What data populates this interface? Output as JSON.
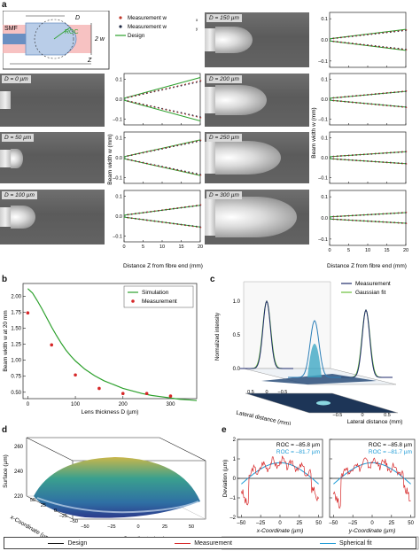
{
  "panel_labels": {
    "a": "a",
    "b": "b",
    "c": "c",
    "d": "d",
    "e": "e"
  },
  "schematic": {
    "smf": "SMF",
    "roc": "ROC",
    "d_label": "D",
    "w_label": "2 w",
    "z_label": "Z"
  },
  "photos": [
    {
      "tag": "D = 0 µm"
    },
    {
      "tag": "D = 50 µm"
    },
    {
      "tag": "D = 100 µm"
    },
    {
      "tag": "D = 150 µm"
    },
    {
      "tag": "D = 200 µm"
    },
    {
      "tag": "D = 250 µm"
    },
    {
      "tag": "D = 300 µm"
    }
  ],
  "panel_a": {
    "legend": {
      "mx": "Measurement w",
      "mx_sub": "x",
      "my": "Measurement w",
      "my_sub": "y",
      "design": "Design"
    },
    "ylabel_left": "Beam width w (mm)",
    "ylabel_right": "Beam width w (mm)",
    "xlabel_left": "Distance Z from fibre end (mm)",
    "xlabel_right": "Distance Z from fibre end (mm)",
    "xticks": [
      "0",
      "5",
      "10",
      "15",
      "20"
    ],
    "yticks": [
      "0.1",
      "0.0",
      "–0.1"
    ],
    "colors": {
      "mx": "#c0392b",
      "my": "#1f2a44",
      "design": "#2ca02c"
    }
  },
  "chart_data": [
    {
      "type": "line",
      "panel": "a-left",
      "xlabel": "Distance Z from fibre end (mm)",
      "ylabel": "Beam width w (mm)",
      "xlim": [
        0,
        20
      ],
      "ylim": [
        -0.1,
        0.1
      ],
      "note_slopes": "half-width (mm) at Z = 20 mm per subplot",
      "subplots": [
        {
          "D": "0 µm",
          "design_end": 0.11,
          "meas_end": 0.09
        },
        {
          "D": "50 µm",
          "design_end": 0.09,
          "meas_end": 0.085
        },
        {
          "D": "100 µm",
          "design_end": 0.055,
          "meas_end": 0.055
        }
      ]
    },
    {
      "type": "line",
      "panel": "a-right",
      "xlabel": "Distance Z from fibre end (mm)",
      "ylabel": "Beam width w (mm)",
      "xlim": [
        0,
        20
      ],
      "ylim": [
        -0.1,
        0.1
      ],
      "subplots": [
        {
          "D": "150 µm",
          "design_end": 0.05,
          "meas_end": 0.045
        },
        {
          "D": "200 µm",
          "design_end": 0.04,
          "meas_end": 0.04
        },
        {
          "D": "250 µm",
          "design_end": 0.03,
          "meas_end": 0.03
        },
        {
          "D": "300 µm",
          "design_end": 0.025,
          "meas_end": 0.025
        }
      ]
    },
    {
      "type": "line",
      "panel": "b",
      "xlabel": "Lens thickness D (µm)",
      "ylabel": "Beam width w at 20 mm",
      "xticks": [
        "0",
        "100",
        "200",
        "300"
      ],
      "yticks": [
        "0.50",
        "0.75",
        "1.00",
        "1.25",
        "1.50",
        "1.75",
        "2.00"
      ],
      "xlim": [
        -10,
        355
      ],
      "ylim": [
        0.4,
        2.2
      ],
      "series": [
        {
          "name": "Simulation",
          "color": "#2ca02c",
          "x": [
            0,
            10,
            20,
            30,
            40,
            50,
            60,
            70,
            80,
            90,
            100,
            120,
            140,
            160,
            180,
            200,
            220,
            240,
            260,
            280,
            300,
            320,
            340,
            355
          ],
          "y": [
            2.12,
            2.05,
            1.93,
            1.8,
            1.66,
            1.52,
            1.39,
            1.27,
            1.16,
            1.07,
            0.99,
            0.86,
            0.76,
            0.68,
            0.62,
            0.56,
            0.52,
            0.48,
            0.45,
            0.43,
            0.41,
            0.39,
            0.38,
            0.37
          ]
        },
        {
          "name": "Measurement",
          "color": "#d62728",
          "x": [
            0,
            50,
            100,
            150,
            200,
            250,
            300
          ],
          "y": [
            1.74,
            1.24,
            0.77,
            0.56,
            0.48,
            0.48,
            0.44
          ]
        }
      ]
    },
    {
      "type": "surface",
      "panel": "c",
      "zlabel": "Normalized intensity",
      "xlabel": "Lateral distance (mm)",
      "ylabel": "Lateral distance (mm)",
      "zticks": [
        "0.0",
        "0.5",
        "1.0"
      ],
      "xticks": [
        "0.5",
        "0",
        "–0.5"
      ],
      "yticks": [
        "–0.5",
        "0",
        "0.5"
      ],
      "legend": [
        {
          "name": "Measurement",
          "color": "#1f2a6b"
        },
        {
          "name": "Gaussian fit",
          "color": "#6abf3a"
        }
      ]
    },
    {
      "type": "surface",
      "panel": "d",
      "zlabel": "Surface (µm)",
      "xlabel": "x-Coordinate (µm)",
      "ylabel": "y-Coordinate (µm)",
      "zticks": [
        "220",
        "240",
        "260"
      ],
      "xticks": [
        "50",
        "25",
        "0",
        "–25",
        "–50"
      ],
      "yticks": [
        "–50",
        "–25",
        "0",
        "25",
        "50"
      ]
    },
    {
      "type": "line",
      "panel": "e",
      "ylabel": "Deviation (µm)",
      "yticks": [
        "–2",
        "–1",
        "0",
        "1",
        "2"
      ],
      "ylim": [
        -2,
        2
      ],
      "subplots": [
        {
          "xlabel": "x-Coordinate (µm)",
          "xticks": [
            "–50",
            "–25",
            "0",
            "25",
            "50"
          ],
          "roc_design": "ROC = –85.8 µm",
          "roc_fit": "ROC = –81.7 µm"
        },
        {
          "xlabel": "y-Coordinate (µm)",
          "xticks": [
            "–50",
            "–25",
            "0",
            "25",
            "50"
          ],
          "roc_design": "ROC = –85.8 µm",
          "roc_fit": "ROC = –81.7 µm"
        }
      ],
      "legend": [
        {
          "name": "Design",
          "color": "#111111"
        },
        {
          "name": "Measurement",
          "color": "#d62728"
        },
        {
          "name": "Spherical fit",
          "color": "#1f9bd6"
        }
      ]
    }
  ]
}
